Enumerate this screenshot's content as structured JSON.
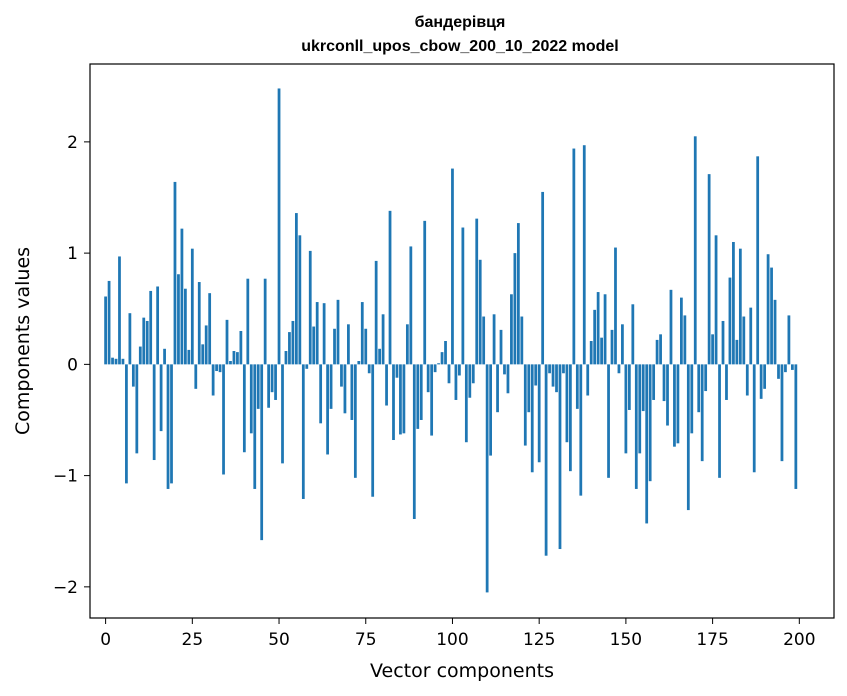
{
  "chart_data": {
    "type": "bar",
    "title": "бандерівця",
    "subtitle": "ukrconll_upos_cbow_200_10_2022 model",
    "xlabel": "Vector components",
    "ylabel": "Components values",
    "xlim": [
      -4.5,
      210
    ],
    "ylim": [
      -2.28,
      2.7
    ],
    "xticks": [
      0,
      25,
      50,
      75,
      100,
      125,
      150,
      175,
      200
    ],
    "xtick_labels": [
      "0",
      "25",
      "50",
      "75",
      "100",
      "125",
      "150",
      "175",
      "200"
    ],
    "yticks": [
      -2,
      -1,
      0,
      1,
      2
    ],
    "ytick_labels": [
      "−2",
      "−1",
      "0",
      "1",
      "2"
    ],
    "grid": false,
    "bar_color": "#1f77b4",
    "values": [
      0.61,
      0.75,
      0.06,
      0.05,
      0.97,
      0.05,
      -1.07,
      0.46,
      -0.2,
      -0.8,
      0.16,
      0.42,
      0.39,
      0.66,
      -0.86,
      0.7,
      -0.6,
      0.14,
      -1.12,
      -1.07,
      1.64,
      0.81,
      1.22,
      0.68,
      0.13,
      1.04,
      -0.22,
      0.74,
      0.18,
      0.35,
      0.64,
      -0.28,
      -0.06,
      -0.07,
      -0.99,
      0.4,
      0.03,
      0.12,
      0.11,
      0.3,
      -0.79,
      0.77,
      -0.62,
      -1.12,
      -0.4,
      -1.58,
      0.77,
      -0.39,
      -0.25,
      -0.32,
      2.48,
      -0.89,
      0.12,
      0.29,
      0.39,
      1.36,
      1.16,
      -1.21,
      -0.04,
      1.02,
      0.34,
      0.56,
      -0.53,
      0.55,
      -0.81,
      -0.4,
      0.32,
      0.58,
      -0.2,
      -0.44,
      0.36,
      -0.5,
      -1.02,
      0.03,
      0.56,
      0.32,
      -0.08,
      -1.19,
      0.93,
      0.14,
      0.45,
      -0.37,
      1.38,
      -0.68,
      -0.12,
      -0.63,
      -0.62,
      0.36,
      1.06,
      -1.39,
      -0.58,
      -0.5,
      1.29,
      -0.25,
      -0.64,
      -0.07,
      0.01,
      0.11,
      0.21,
      -0.17,
      1.76,
      -0.32,
      -0.1,
      1.23,
      -0.7,
      -0.3,
      -0.17,
      1.31,
      0.94,
      0.43,
      -2.05,
      -0.82,
      0.45,
      -0.43,
      0.31,
      -0.09,
      -0.26,
      0.63,
      1.0,
      1.27,
      0.43,
      -0.73,
      -0.43,
      -0.97,
      -0.19,
      -0.88,
      1.55,
      -1.72,
      -0.08,
      -0.2,
      -0.25,
      -1.66,
      -0.08,
      -0.7,
      -0.96,
      1.94,
      -0.4,
      -1.18,
      1.97,
      -0.28,
      0.21,
      0.49,
      0.65,
      0.24,
      0.63,
      -1.02,
      0.31,
      1.05,
      -0.08,
      0.36,
      -0.8,
      -0.41,
      0.54,
      -1.12,
      -0.8,
      -0.42,
      -1.43,
      -1.05,
      -0.32,
      0.22,
      0.27,
      -0.33,
      -0.55,
      0.67,
      -0.74,
      -0.71,
      0.6,
      0.44,
      -1.31,
      -0.62,
      2.05,
      -0.43,
      -0.87,
      -0.24,
      1.71,
      0.27,
      1.16,
      -1.02,
      0.39,
      -0.32,
      0.78,
      1.1,
      0.22,
      1.04,
      0.43,
      -0.28,
      0.51,
      -0.97,
      1.87,
      -0.31,
      -0.22,
      0.99,
      0.87,
      0.58,
      -0.13,
      -0.87,
      -0.07,
      0.44,
      -0.05,
      -1.12
    ]
  }
}
